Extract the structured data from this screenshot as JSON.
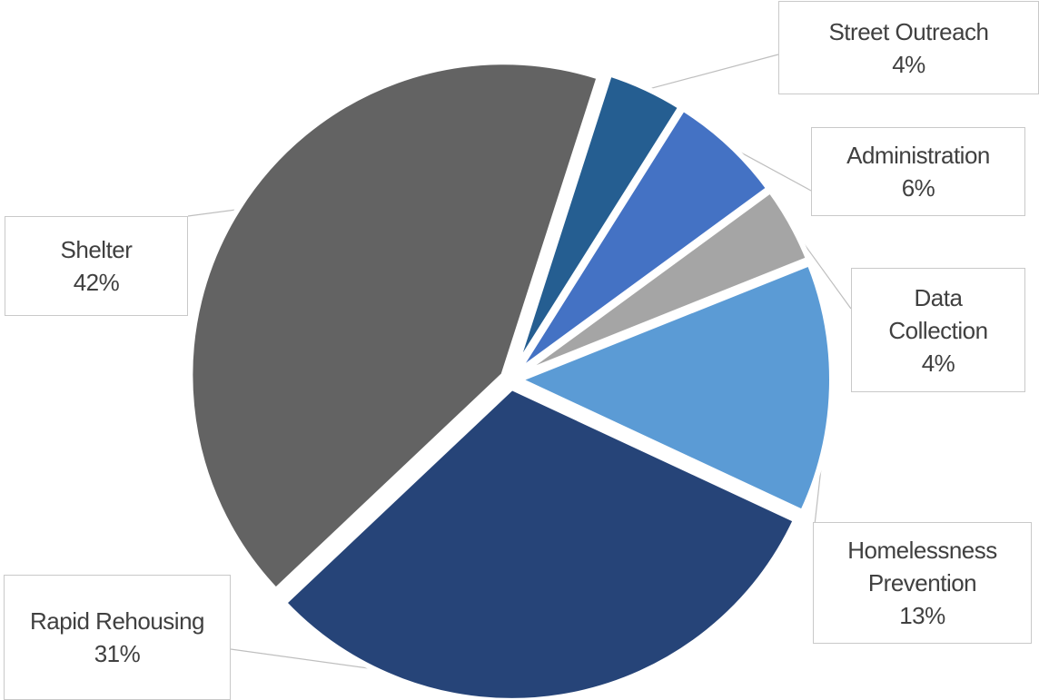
{
  "chart_data": {
    "type": "pie",
    "title": "",
    "legend": "none",
    "data_labels": "callout boxes with category name and percentage",
    "slices": [
      {
        "name": "Street Outreach",
        "value": 4,
        "label": "4%",
        "color": "#255e91"
      },
      {
        "name": "Administration",
        "value": 6,
        "label": "6%",
        "color": "#4472c4"
      },
      {
        "name": "Data Collection",
        "value": 4,
        "label": "4%",
        "color": "#a5a5a5"
      },
      {
        "name": "Homelessness Prevention",
        "value": 13,
        "label": "13%",
        "color": "#5b9bd5"
      },
      {
        "name": "Rapid Rehousing",
        "value": 31,
        "label": "31%",
        "color": "#264478"
      },
      {
        "name": "Shelter",
        "value": 42,
        "label": "42%",
        "color": "#636363"
      }
    ]
  }
}
